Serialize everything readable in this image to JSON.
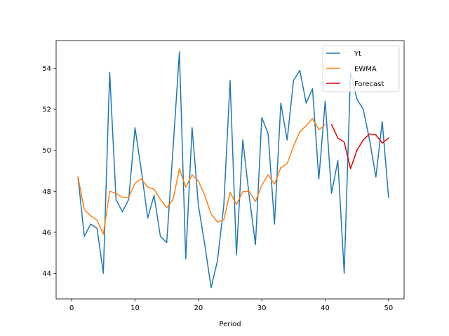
{
  "chart_data": {
    "type": "line",
    "xlabel": "Period",
    "ylabel": "",
    "xlim": [
      -2.45,
      52.45
    ],
    "ylim": [
      42.75,
      55.35
    ],
    "xticks": [
      0,
      10,
      20,
      30,
      40,
      50
    ],
    "yticks": [
      44,
      46,
      48,
      50,
      52,
      54
    ],
    "legend_position": "top-right",
    "grid": false,
    "series": [
      {
        "name": "Yt",
        "color": "#1f77b4",
        "x": [
          1,
          2,
          3,
          4,
          5,
          6,
          7,
          8,
          9,
          10,
          11,
          12,
          13,
          14,
          15,
          16,
          17,
          18,
          19,
          20,
          21,
          22,
          23,
          24,
          25,
          26,
          27,
          28,
          29,
          30,
          31,
          32,
          33,
          34,
          35,
          36,
          37,
          38,
          39,
          40,
          41,
          42,
          43,
          44,
          45,
          46,
          47,
          48,
          49,
          50
        ],
        "values": [
          48.7,
          45.8,
          46.4,
          46.2,
          44.0,
          53.8,
          47.6,
          47.0,
          47.6,
          51.1,
          49.0,
          46.7,
          47.8,
          45.8,
          45.5,
          50.1,
          54.8,
          44.7,
          51.1,
          47.3,
          45.4,
          43.3,
          44.6,
          47.3,
          53.4,
          44.9,
          50.5,
          47.8,
          45.4,
          51.6,
          50.8,
          46.4,
          52.3,
          50.5,
          53.4,
          53.9,
          52.3,
          53.0,
          48.6,
          52.4,
          47.9,
          49.5,
          44.0,
          53.8,
          52.5,
          52.0,
          50.5,
          48.7,
          51.4,
          47.7
        ]
      },
      {
        "name": "EWMA",
        "color": "#ff7f0e",
        "x": [
          1,
          2,
          3,
          4,
          5,
          6,
          7,
          8,
          9,
          10,
          11,
          12,
          13,
          14,
          15,
          16,
          17,
          18,
          19,
          20,
          21,
          22,
          23,
          24,
          25,
          26,
          27,
          28,
          29,
          30,
          31,
          32,
          33,
          34,
          35,
          36,
          37,
          38,
          39,
          40
        ],
        "values": [
          48.7,
          47.1,
          46.8,
          46.6,
          45.9,
          48.0,
          47.9,
          47.7,
          47.7,
          48.4,
          48.6,
          48.2,
          48.1,
          47.6,
          47.2,
          47.6,
          49.1,
          48.2,
          48.8,
          48.5,
          47.8,
          46.9,
          46.5,
          46.6,
          47.95,
          47.35,
          47.98,
          48.0,
          47.5,
          48.3,
          48.8,
          48.35,
          49.15,
          49.35,
          50.2,
          50.9,
          51.2,
          51.55,
          51.0,
          51.25
        ]
      },
      {
        "name": "Forecast",
        "color": "#dd0000",
        "x": [
          41,
          42,
          43,
          44,
          45,
          46,
          47,
          48,
          49,
          50
        ],
        "values": [
          51.25,
          50.6,
          50.4,
          49.1,
          50.0,
          50.5,
          50.8,
          50.75,
          50.35,
          50.6
        ]
      }
    ]
  }
}
